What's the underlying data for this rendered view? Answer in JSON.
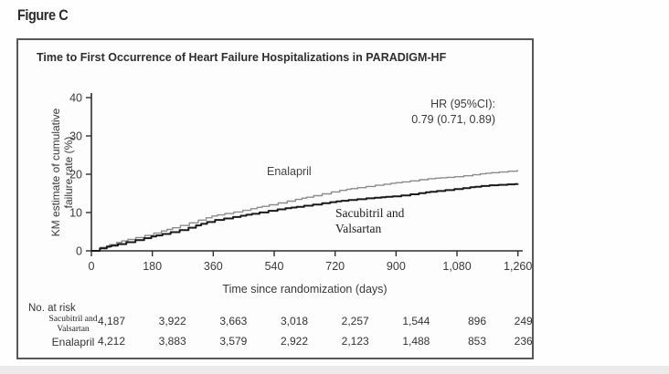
{
  "figure_label": "Figure C",
  "chart": {
    "title": "Time to First Occurrence of Heart Failure Hospitalizations in PARADIGM-HF",
    "hr_annotation_line1": "HR (95%CI):",
    "hr_annotation_line2": "0.79 (0.71, 0.89)",
    "y_axis_label_line1": "KM estimate of cumulative",
    "y_axis_label_line2": "failure rate (%)",
    "x_axis_label": "Time since randomization (days)",
    "curve_label_enalapril": "Enalapril",
    "curve_label_sacubitril_line1": "Sacubitril and",
    "curve_label_sacubitril_line2": "Valsartan"
  },
  "chart_data": {
    "type": "line",
    "subtype": "kaplan-meier-step",
    "title": "Time to First Occurrence of Heart Failure Hospitalizations in PARADIGM-HF",
    "xlabel": "Time since randomization (days)",
    "ylabel": "KM estimate of cumulative failure rate (%)",
    "xlim": [
      0,
      1260
    ],
    "ylim": [
      0,
      40
    ],
    "xticks": [
      0,
      180,
      360,
      540,
      720,
      900,
      1080,
      1260
    ],
    "xtick_labels": [
      "0",
      "180",
      "360",
      "540",
      "720",
      "900",
      "1,080",
      "1,260"
    ],
    "yticks": [
      0,
      10,
      20,
      30,
      40
    ],
    "grid": false,
    "legend_position": "inline-curve-labels",
    "annotation": "HR (95%CI): 0.79 (0.71, 0.89)",
    "series": [
      {
        "name": "Enalapril",
        "color": "#8c8c8c",
        "x": [
          0,
          30,
          90,
          180,
          270,
          360,
          450,
          540,
          630,
          720,
          810,
          900,
          990,
          1080,
          1170,
          1260
        ],
        "y": [
          0,
          1.0,
          2.6,
          4.5,
          6.8,
          9.2,
          10.6,
          12.3,
          13.9,
          15.6,
          16.8,
          17.8,
          18.8,
          19.4,
          20.3,
          21.0
        ]
      },
      {
        "name": "Sacubitril and Valsartan",
        "color": "#1a1a1a",
        "x": [
          0,
          30,
          90,
          180,
          270,
          360,
          450,
          540,
          630,
          720,
          810,
          900,
          990,
          1080,
          1170,
          1260
        ],
        "y": [
          0,
          0.8,
          2.0,
          3.8,
          5.6,
          8.0,
          9.3,
          10.7,
          11.8,
          12.9,
          13.7,
          14.3,
          15.3,
          16.2,
          17.1,
          17.5
        ]
      }
    ]
  },
  "risk_table": {
    "heading": "No. at risk",
    "rows": [
      {
        "label_lines": [
          "Sacubitril and",
          "Valsartan"
        ],
        "values": [
          "4,187",
          "3,922",
          "3,663",
          "3,018",
          "2,257",
          "1,544",
          "896",
          "249"
        ]
      },
      {
        "label_lines": [
          "Enalapril",
          ""
        ],
        "values": [
          "4,212",
          "3,883",
          "3,579",
          "2,922",
          "2,123",
          "1,488",
          "853",
          "236"
        ]
      }
    ]
  },
  "colors": {
    "enalapril_curve": "#8c8c8c",
    "sacubitril_curve": "#1a1a1a",
    "axis": "#2e2e2e",
    "text": "#333333",
    "box_border": "#585858"
  }
}
